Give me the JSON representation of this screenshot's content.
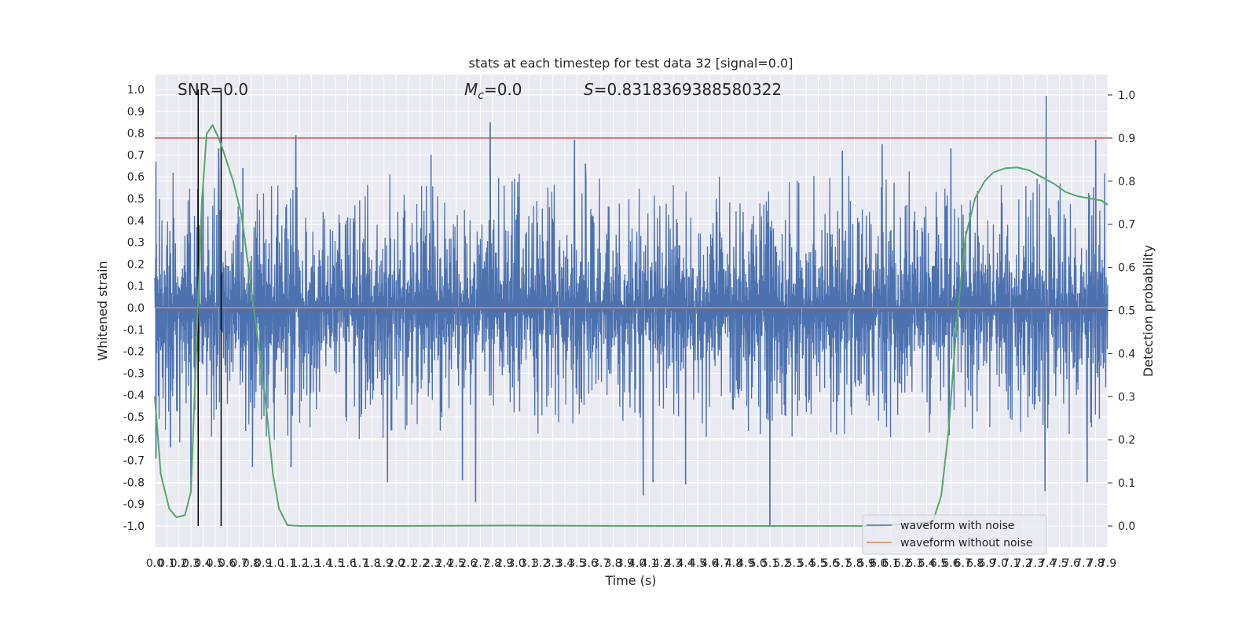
{
  "chart_data": {
    "type": "line",
    "title": "stats at each timestep for test data 32 [signal=0.0]",
    "xlabel": "Time (s)",
    "ylabel": "Whitened strain",
    "ylabel_right": "Detection probability",
    "xlim": [
      0.0,
      7.9
    ],
    "ylim": [
      -1.1,
      1.05
    ],
    "ylim_right": [
      -0.05,
      1.03
    ],
    "x_ticks": [
      "0.0",
      "0.1",
      "0.2",
      "0.3",
      "0.4",
      "0.5",
      "0.6",
      "0.7",
      "0.8",
      "0.9",
      "1.0",
      "1.1",
      "1.2",
      "1.3",
      "1.4",
      "1.5",
      "1.6",
      "1.7",
      "1.8",
      "1.9",
      "2.0",
      "2.1",
      "2.2",
      "2.3",
      "2.4",
      "2.5",
      "2.6",
      "2.7",
      "2.8",
      "2.9",
      "3.0",
      "3.1",
      "3.2",
      "3.3",
      "3.4",
      "3.5",
      "3.6",
      "3.7",
      "3.8",
      "3.9",
      "4.0",
      "4.1",
      "4.2",
      "4.3",
      "4.4",
      "4.5",
      "4.6",
      "4.7",
      "4.8",
      "4.9",
      "5.0",
      "5.1",
      "5.2",
      "5.3",
      "5.4",
      "5.5",
      "5.6",
      "5.7",
      "5.8",
      "5.9",
      "6.0",
      "6.1",
      "6.2",
      "6.3",
      "6.4",
      "6.5",
      "6.6",
      "6.7",
      "6.8",
      "6.9",
      "7.0",
      "7.1",
      "7.2",
      "7.3",
      "7.4",
      "7.5",
      "7.6",
      "7.7",
      "7.8",
      "7.9"
    ],
    "y_ticks": [
      "1.0",
      "0.9",
      "0.8",
      "0.7",
      "0.6",
      "0.5",
      "0.4",
      "0.3",
      "0.2",
      "0.1",
      "0.0",
      "-0.1",
      "-0.2",
      "-0.3",
      "-0.4",
      "-0.5",
      "-0.6",
      "-0.7",
      "-0.8",
      "-0.9",
      "-1.0"
    ],
    "y_ticks_right": [
      "1.0",
      "0.9",
      "0.8",
      "0.7",
      "0.6",
      "0.5",
      "0.4",
      "0.3",
      "0.2",
      "0.1",
      "0.0"
    ],
    "annotations": {
      "snr": "SNR=0.0",
      "mc": "=0.0",
      "mc_symbol": "M",
      "mc_sub": "c",
      "s_symbol": "S",
      "s": "=0.8318369388580322"
    },
    "vertical_lines_x": [
      0.36,
      0.55
    ],
    "threshold_right": 0.9,
    "series": [
      {
        "name": "waveform with noise",
        "color": "#4c72b0",
        "envelope": {
          "typical_pos_range": [
            0.25,
            0.45
          ],
          "typical_neg_range": [
            -0.3,
            -0.5
          ],
          "spikes": [
            {
              "x": 0.01,
              "y": 0.67
            },
            {
              "x": 0.01,
              "y": -0.69
            },
            {
              "x": 0.13,
              "y": -0.64
            },
            {
              "x": 0.3,
              "y": -0.83
            },
            {
              "x": 0.36,
              "y": -0.58
            },
            {
              "x": 0.4,
              "y": 0.57
            },
            {
              "x": 0.53,
              "y": 0.73
            },
            {
              "x": 0.73,
              "y": 0.64
            },
            {
              "x": 0.81,
              "y": -0.73
            },
            {
              "x": 1.17,
              "y": 0.79
            },
            {
              "x": 1.13,
              "y": -0.73
            },
            {
              "x": 1.93,
              "y": -0.8
            },
            {
              "x": 2.29,
              "y": 0.7
            },
            {
              "x": 2.55,
              "y": -0.79
            },
            {
              "x": 2.66,
              "y": -0.89
            },
            {
              "x": 2.78,
              "y": 0.85
            },
            {
              "x": 3.48,
              "y": 0.77
            },
            {
              "x": 3.57,
              "y": 0.66
            },
            {
              "x": 4.05,
              "y": -0.86
            },
            {
              "x": 4.13,
              "y": -0.8
            },
            {
              "x": 4.4,
              "y": -0.81
            },
            {
              "x": 5.1,
              "y": -1.0
            },
            {
              "x": 5.7,
              "y": 0.72
            },
            {
              "x": 6.03,
              "y": 0.75
            },
            {
              "x": 6.6,
              "y": 0.73
            },
            {
              "x": 7.39,
              "y": 0.97
            },
            {
              "x": 7.38,
              "y": -0.84
            },
            {
              "x": 7.73,
              "y": -0.8
            },
            {
              "x": 7.8,
              "y": 0.77
            }
          ]
        }
      },
      {
        "name": "waveform without noise",
        "color": "#dd8452",
        "values_constant": 0.0
      },
      {
        "name": "",
        "color": "#55a868",
        "axis": "right",
        "x": [
          0.0,
          0.05,
          0.12,
          0.18,
          0.25,
          0.3,
          0.35,
          0.39,
          0.43,
          0.48,
          0.53,
          0.58,
          0.65,
          0.72,
          0.8,
          0.87,
          0.93,
          0.98,
          1.03,
          1.1,
          1.2,
          2.0,
          3.0,
          4.0,
          5.0,
          6.0,
          6.45,
          6.52,
          6.58,
          6.65,
          6.72,
          6.8,
          6.88,
          6.95,
          7.05,
          7.15,
          7.25,
          7.35,
          7.45,
          7.55,
          7.65,
          7.75,
          7.85,
          7.9
        ],
        "y": [
          0.3,
          0.12,
          0.04,
          0.02,
          0.025,
          0.08,
          0.45,
          0.75,
          0.91,
          0.93,
          0.9,
          0.86,
          0.8,
          0.72,
          0.55,
          0.4,
          0.26,
          0.12,
          0.04,
          0.002,
          0.0,
          0.0,
          0.001,
          0.0,
          0.0,
          0.0,
          0.01,
          0.07,
          0.22,
          0.48,
          0.67,
          0.76,
          0.8,
          0.82,
          0.83,
          0.832,
          0.825,
          0.81,
          0.795,
          0.775,
          0.765,
          0.76,
          0.755,
          0.745
        ]
      }
    ],
    "legend": {
      "placement": "lower-right",
      "entries": [
        "waveform with noise",
        "waveform without noise"
      ]
    },
    "grid": true,
    "colors": {
      "background": "#eaeaf2",
      "grid": "#ffffff",
      "threshold": "#c44e52",
      "vline": "#000000"
    }
  }
}
